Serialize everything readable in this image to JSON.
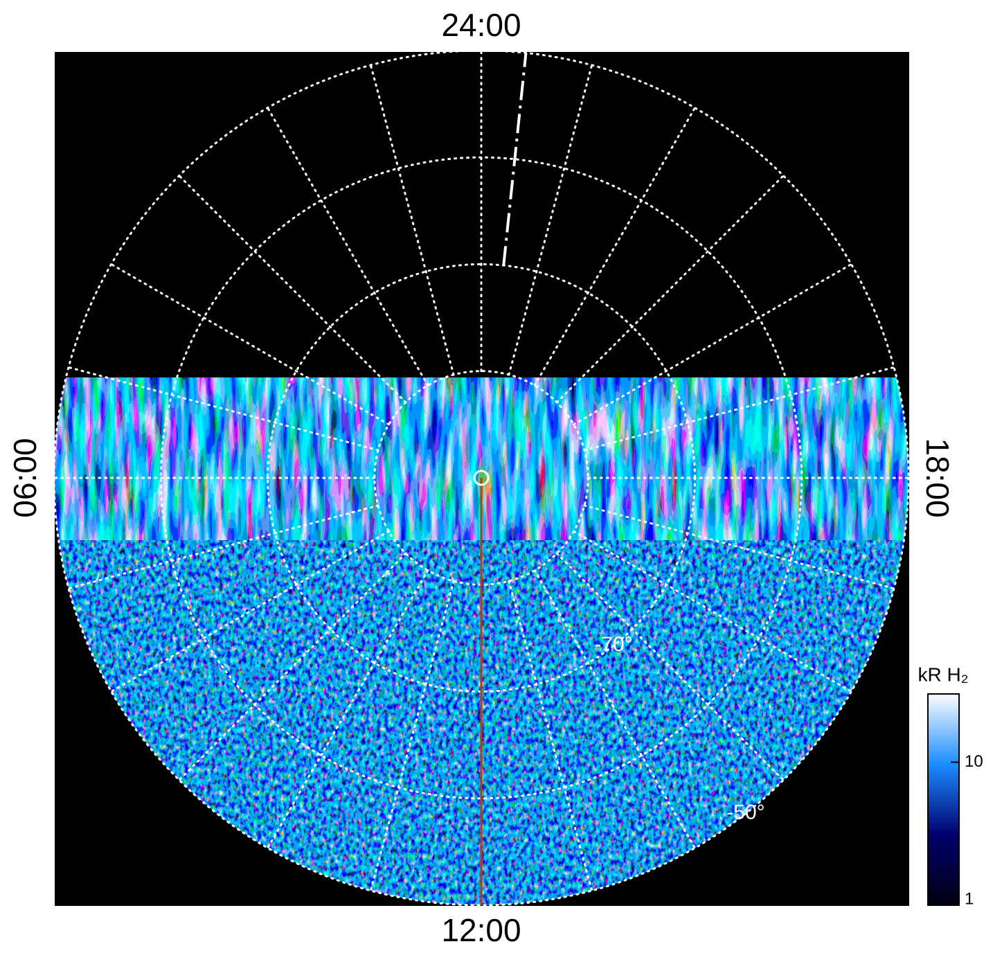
{
  "chart_data": {
    "type": "polar_map",
    "hour_labels": {
      "top": "24:00",
      "left": "06:00",
      "right": "18:00",
      "bottom": "12:00"
    },
    "rlim": [
      -90,
      -50
    ],
    "rticks": [
      -80,
      -70,
      -60,
      -50
    ],
    "latitude_labels": [
      {
        "value": -70,
        "label": "-70°"
      },
      {
        "value": -50,
        "label": "-50°"
      }
    ],
    "grid": true,
    "red_meridian_hours": 12,
    "red_meridian_color": "#cc3300",
    "dashed_meridian_hours": 23.6,
    "colorbar": {
      "label": "kR H₂",
      "clim": [
        1,
        30
      ],
      "ticks": [
        1,
        10
      ],
      "log": true,
      "colors": [
        "#000010",
        "#00006e",
        "#1a8cff",
        "#ffffff"
      ]
    }
  }
}
